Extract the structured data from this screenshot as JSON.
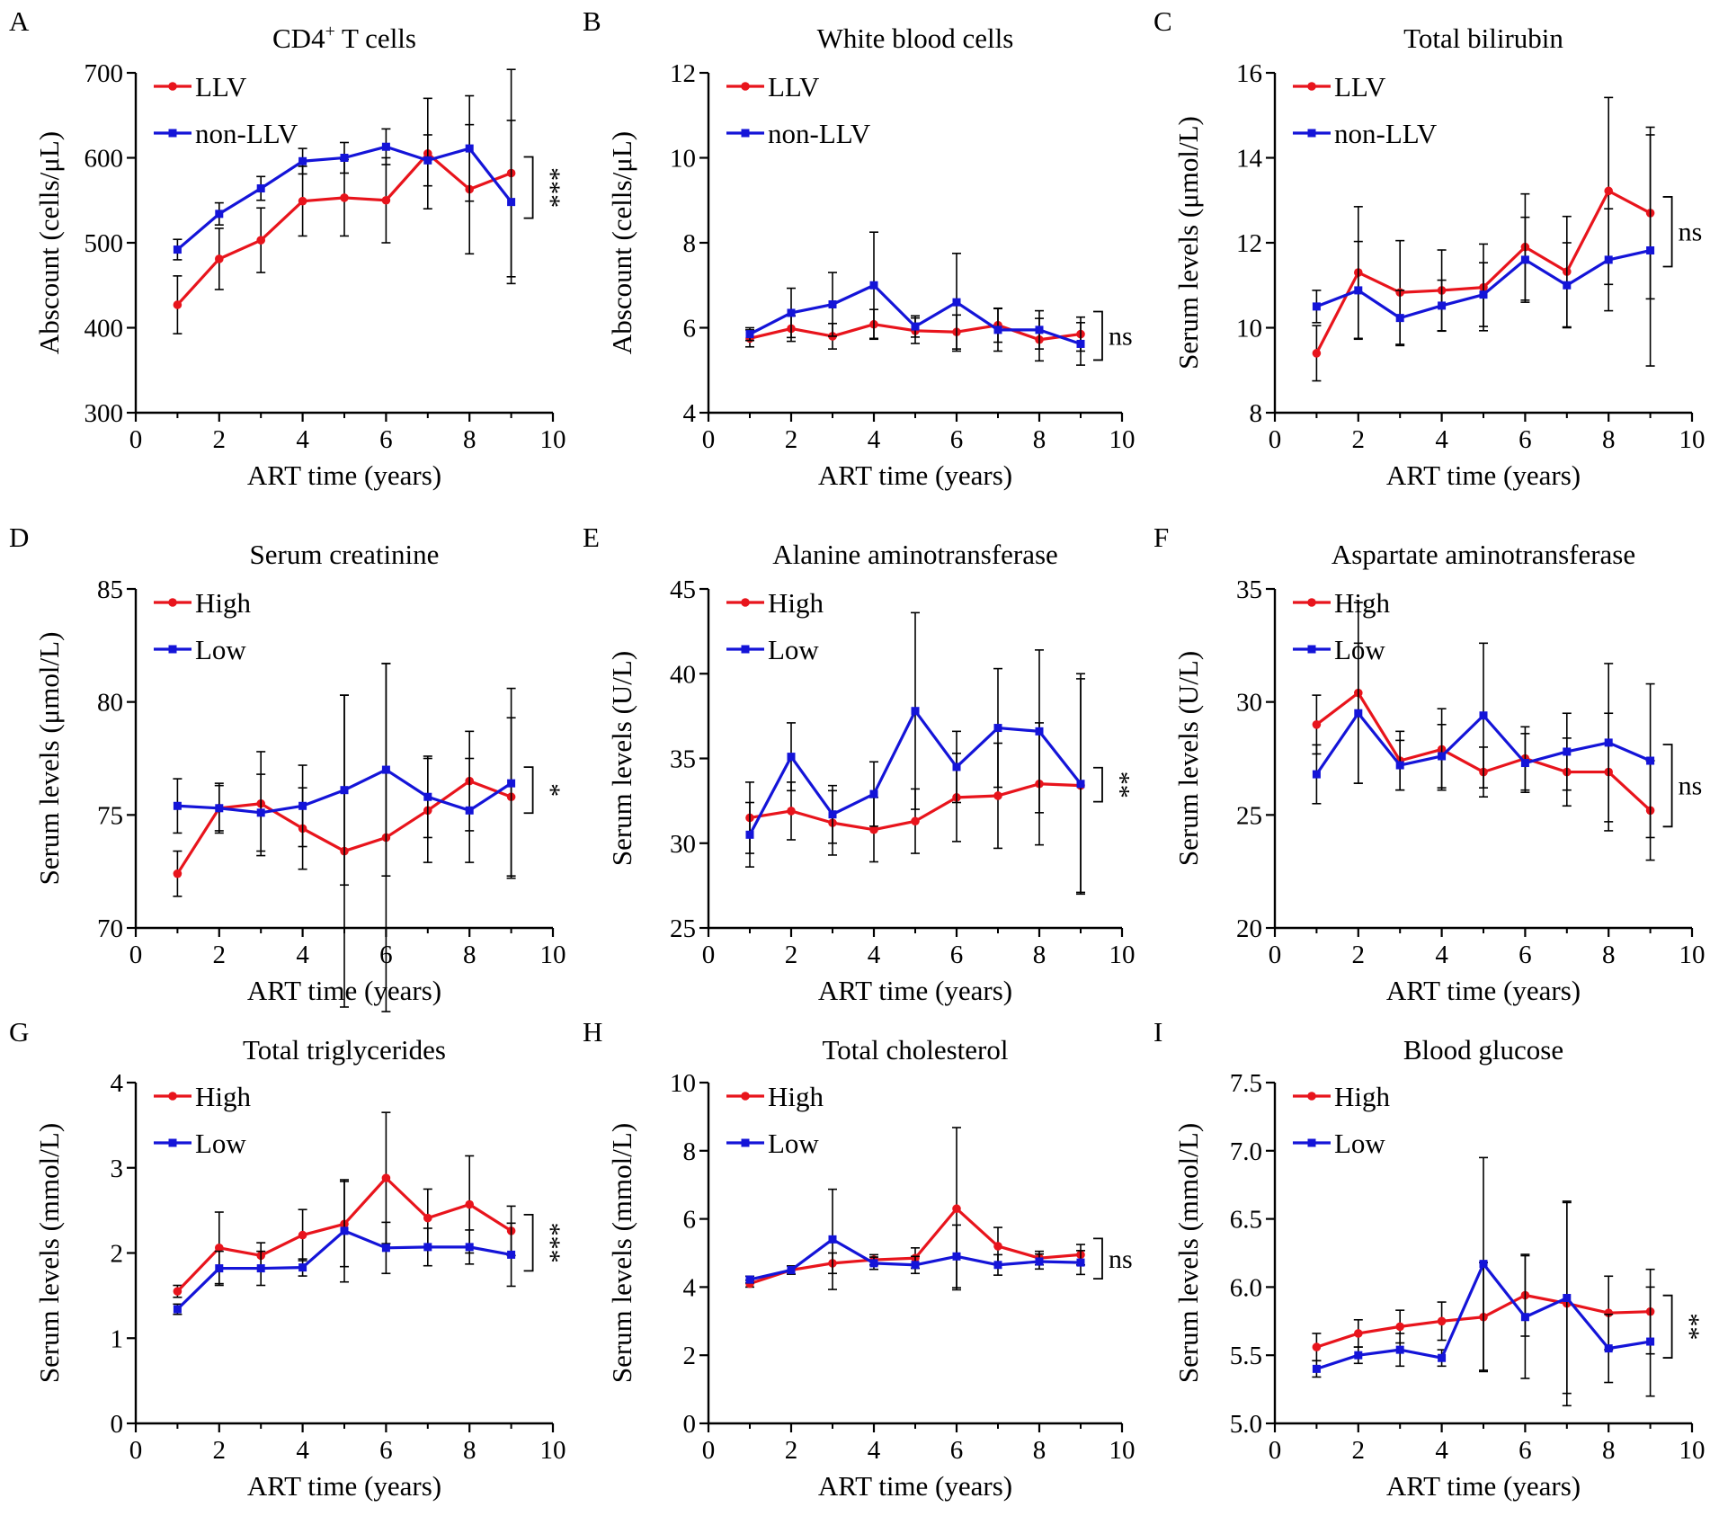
{
  "colors": {
    "series1": "#e8141c",
    "series2": "#1414d8",
    "axis": "#000000",
    "errorbar": "#000000"
  },
  "chart_data": [
    {
      "panel": "A",
      "type": "line",
      "title_main": "CD4",
      "title_sup": "+",
      "title_rest": " T cells",
      "xlabel": "ART time (years)",
      "ylabel": "Abscount (cells/μL)",
      "xlim": [
        0,
        10
      ],
      "ylim": [
        300,
        700
      ],
      "xticks": [
        0,
        2,
        4,
        6,
        8,
        10
      ],
      "yticks": [
        300,
        400,
        500,
        600,
        700
      ],
      "x": [
        1,
        2,
        3,
        4,
        5,
        6,
        7,
        8,
        9
      ],
      "series": [
        {
          "name": "LLV",
          "marker": "circle",
          "values": [
            427,
            481,
            503,
            549,
            553,
            550,
            605,
            563,
            582
          ],
          "err": [
            34,
            36,
            38,
            41,
            45,
            50,
            65,
            76,
            122
          ]
        },
        {
          "name": "non-LLV",
          "marker": "square",
          "values": [
            492,
            534,
            564,
            596,
            600,
            613,
            597,
            611,
            548
          ],
          "err": [
            12,
            13,
            14,
            15,
            18,
            21,
            30,
            62,
            96
          ]
        }
      ],
      "significance": "***",
      "sig_range": [
        548,
        582
      ]
    },
    {
      "panel": "B",
      "type": "line",
      "title": "White blood cells",
      "xlabel": "ART time (years)",
      "ylabel": "Abscount (cells/μL)",
      "xlim": [
        0,
        10
      ],
      "ylim": [
        4,
        12
      ],
      "xticks": [
        0,
        2,
        4,
        6,
        8,
        10
      ],
      "yticks": [
        4,
        6,
        8,
        10,
        12
      ],
      "x": [
        1,
        2,
        3,
        4,
        5,
        6,
        7,
        8,
        9
      ],
      "series": [
        {
          "name": "LLV",
          "marker": "circle",
          "values": [
            5.75,
            5.98,
            5.8,
            6.08,
            5.93,
            5.9,
            6.06,
            5.72,
            5.85
          ],
          "err": [
            0.2,
            0.3,
            0.3,
            0.35,
            0.3,
            0.4,
            0.4,
            0.5,
            0.4
          ]
        },
        {
          "name": "non-LLV",
          "marker": "square",
          "values": [
            5.85,
            6.35,
            6.55,
            7.0,
            6.03,
            6.6,
            5.95,
            5.95,
            5.62
          ],
          "err": [
            0.15,
            0.58,
            0.75,
            1.25,
            0.25,
            1.15,
            0.5,
            0.45,
            0.5
          ]
        }
      ],
      "significance": "ns",
      "sig_range": [
        5.62,
        6.0
      ]
    },
    {
      "panel": "C",
      "type": "line",
      "title": "Total bilirubin",
      "xlabel": "ART time (years)",
      "ylabel": "Serum levels (μmol/L)",
      "xlim": [
        0,
        10
      ],
      "ylim": [
        8,
        16
      ],
      "xticks": [
        0,
        2,
        4,
        6,
        8,
        10
      ],
      "yticks": [
        8,
        10,
        12,
        14,
        16
      ],
      "x": [
        1,
        2,
        3,
        4,
        5,
        6,
        7,
        8,
        9
      ],
      "series": [
        {
          "name": "LLV",
          "marker": "circle",
          "values": [
            9.4,
            11.3,
            10.83,
            10.88,
            10.95,
            11.9,
            11.32,
            13.22,
            12.7
          ],
          "err": [
            0.65,
            1.55,
            1.22,
            0.95,
            1.02,
            1.25,
            1.3,
            2.2,
            2.02
          ]
        },
        {
          "name": "non-LLV",
          "marker": "square",
          "values": [
            10.5,
            10.88,
            10.23,
            10.52,
            10.78,
            11.6,
            11.0,
            11.6,
            11.82
          ],
          "err": [
            0.38,
            1.15,
            0.65,
            0.6,
            0.75,
            1.0,
            1.0,
            1.2,
            2.72
          ]
        }
      ],
      "significance": "ns",
      "sig_range": [
        11.82,
        12.7
      ]
    },
    {
      "panel": "D",
      "type": "line",
      "title": "Serum creatinine",
      "xlabel": "ART time (years)",
      "ylabel": "Serum levels (μmol/L)",
      "xlim": [
        0,
        10
      ],
      "ylim": [
        70,
        85
      ],
      "xticks": [
        0,
        2,
        4,
        6,
        8,
        10
      ],
      "yticks": [
        70,
        75,
        80,
        85
      ],
      "x": [
        1,
        2,
        3,
        4,
        5,
        6,
        7,
        8,
        9
      ],
      "series": [
        {
          "name": "High",
          "marker": "circle",
          "values": [
            72.4,
            75.3,
            75.5,
            74.4,
            73.4,
            74.0,
            75.2,
            76.5,
            75.8
          ],
          "err": [
            1.0,
            1.1,
            2.3,
            1.8,
            6.9,
            7.7,
            2.3,
            2.2,
            3.5
          ]
        },
        {
          "name": "Low",
          "marker": "square",
          "values": [
            75.4,
            75.3,
            75.1,
            75.4,
            76.1,
            77.0,
            75.8,
            75.2,
            76.4
          ],
          "err": [
            1.2,
            1.0,
            1.7,
            1.8,
            4.2,
            4.7,
            1.8,
            2.3,
            4.2
          ]
        }
      ],
      "significance": "*",
      "sig_range": [
        75.8,
        76.4
      ]
    },
    {
      "panel": "E",
      "type": "line",
      "title": "Alanine aminotransferase",
      "xlabel": "ART time (years)",
      "ylabel": "Serum levels (U/L)",
      "xlim": [
        0,
        10
      ],
      "ylim": [
        25,
        45
      ],
      "xticks": [
        0,
        2,
        4,
        6,
        8,
        10
      ],
      "yticks": [
        25,
        30,
        35,
        40,
        45
      ],
      "x": [
        1,
        2,
        3,
        4,
        5,
        6,
        7,
        8,
        9
      ],
      "series": [
        {
          "name": "High",
          "marker": "circle",
          "values": [
            31.5,
            31.9,
            31.2,
            30.8,
            31.3,
            32.7,
            32.8,
            33.5,
            33.4
          ],
          "err": [
            2.1,
            1.7,
            1.9,
            1.9,
            1.9,
            2.6,
            3.1,
            3.6,
            6.3
          ]
        },
        {
          "name": "Low",
          "marker": "square",
          "values": [
            30.5,
            35.1,
            31.7,
            32.9,
            37.8,
            34.5,
            36.8,
            36.6,
            33.5
          ],
          "err": [
            1.9,
            2.0,
            1.7,
            1.9,
            5.8,
            2.1,
            3.5,
            4.8,
            6.5
          ]
        }
      ],
      "significance": "**",
      "sig_range": [
        33.4,
        33.5
      ]
    },
    {
      "panel": "F",
      "type": "line",
      "title": "Aspartate aminotransferase",
      "xlabel": "ART time (years)",
      "ylabel": "Serum levels (U/L)",
      "xlim": [
        0,
        10
      ],
      "ylim": [
        20,
        35
      ],
      "xticks": [
        0,
        2,
        4,
        6,
        8,
        10
      ],
      "yticks": [
        20,
        25,
        30,
        35
      ],
      "x": [
        1,
        2,
        3,
        4,
        5,
        6,
        7,
        8,
        9
      ],
      "series": [
        {
          "name": "High",
          "marker": "circle",
          "values": [
            29.0,
            30.4,
            27.4,
            27.9,
            26.9,
            27.5,
            26.9,
            26.9,
            25.2
          ],
          "err": [
            1.3,
            4.0,
            1.3,
            1.8,
            1.1,
            1.4,
            1.5,
            2.6,
            2.2
          ]
        },
        {
          "name": "Low",
          "marker": "square",
          "values": [
            26.8,
            29.5,
            27.2,
            27.6,
            29.4,
            27.3,
            27.8,
            28.2,
            27.4
          ],
          "err": [
            1.3,
            3.1,
            1.1,
            1.4,
            3.2,
            1.3,
            1.7,
            3.5,
            3.4
          ]
        }
      ],
      "significance": "ns",
      "sig_range": [
        25.2,
        27.4
      ]
    },
    {
      "panel": "G",
      "type": "line",
      "title": "Total triglycerides",
      "xlabel": "ART time (years)",
      "ylabel": "Serum levels (mmol/L)",
      "xlim": [
        0,
        10
      ],
      "ylim": [
        0,
        4
      ],
      "xticks": [
        0,
        2,
        4,
        6,
        8,
        10
      ],
      "yticks": [
        0,
        1,
        2,
        3,
        4
      ],
      "x": [
        1,
        2,
        3,
        4,
        5,
        6,
        7,
        8,
        9
      ],
      "series": [
        {
          "name": "High",
          "marker": "circle",
          "values": [
            1.55,
            2.06,
            1.97,
            2.21,
            2.34,
            2.88,
            2.41,
            2.57,
            2.26
          ],
          "err": [
            0.07,
            0.42,
            0.15,
            0.3,
            0.5,
            0.77,
            0.34,
            0.57,
            0.29
          ]
        },
        {
          "name": "Low",
          "marker": "square",
          "values": [
            1.34,
            1.82,
            1.82,
            1.83,
            2.26,
            2.06,
            2.07,
            2.07,
            1.98
          ],
          "err": [
            0.06,
            0.2,
            0.2,
            0.1,
            0.6,
            0.3,
            0.22,
            0.2,
            0.37
          ]
        }
      ],
      "significance": "***",
      "sig_range": [
        1.98,
        2.26
      ]
    },
    {
      "panel": "H",
      "type": "line",
      "title": "Total cholesterol",
      "xlabel": "ART time (years)",
      "ylabel": "Serum levels (mmol/L)",
      "xlim": [
        0,
        10
      ],
      "ylim": [
        0,
        10
      ],
      "xticks": [
        0,
        2,
        4,
        6,
        8,
        10
      ],
      "yticks": [
        0,
        2,
        4,
        6,
        8,
        10
      ],
      "x": [
        1,
        2,
        3,
        4,
        5,
        6,
        7,
        8,
        9
      ],
      "series": [
        {
          "name": "High",
          "marker": "circle",
          "values": [
            4.1,
            4.5,
            4.7,
            4.8,
            4.85,
            6.3,
            5.2,
            4.85,
            4.95
          ],
          "err": [
            0.1,
            0.12,
            0.3,
            0.15,
            0.3,
            2.38,
            0.55,
            0.2,
            0.3
          ]
        },
        {
          "name": "Low",
          "marker": "square",
          "values": [
            4.22,
            4.5,
            5.4,
            4.7,
            4.65,
            4.9,
            4.65,
            4.75,
            4.72
          ],
          "err": [
            0.1,
            0.12,
            1.47,
            0.18,
            0.25,
            0.92,
            0.3,
            0.22,
            0.35
          ]
        }
      ],
      "significance": "ns",
      "sig_range": [
        4.72,
        4.95
      ]
    },
    {
      "panel": "I",
      "type": "line",
      "title": "Blood glucose",
      "xlabel": "ART time (years)",
      "ylabel": "Serum levels (mmol/L)",
      "xlim": [
        0,
        10
      ],
      "ylim": [
        5.0,
        7.5
      ],
      "xticks": [
        0,
        2,
        4,
        6,
        8,
        10
      ],
      "yticks": [
        "5.0",
        "5.5",
        "6.0",
        "6.5",
        "7.0",
        "7.5"
      ],
      "x": [
        1,
        2,
        3,
        4,
        5,
        6,
        7,
        8,
        9
      ],
      "series": [
        {
          "name": "High",
          "marker": "circle",
          "values": [
            5.56,
            5.66,
            5.71,
            5.75,
            5.78,
            5.94,
            5.88,
            5.81,
            5.82
          ],
          "err": [
            0.1,
            0.1,
            0.12,
            0.14,
            0.4,
            0.3,
            0.75,
            0.27,
            0.31
          ]
        },
        {
          "name": "Low",
          "marker": "square",
          "values": [
            5.4,
            5.5,
            5.54,
            5.48,
            6.17,
            5.78,
            5.92,
            5.55,
            5.6
          ],
          "err": [
            0.06,
            0.06,
            0.12,
            0.06,
            0.78,
            0.45,
            0.7,
            0.25,
            0.4
          ]
        }
      ],
      "significance": "**",
      "sig_range": [
        5.6,
        5.82
      ]
    }
  ]
}
